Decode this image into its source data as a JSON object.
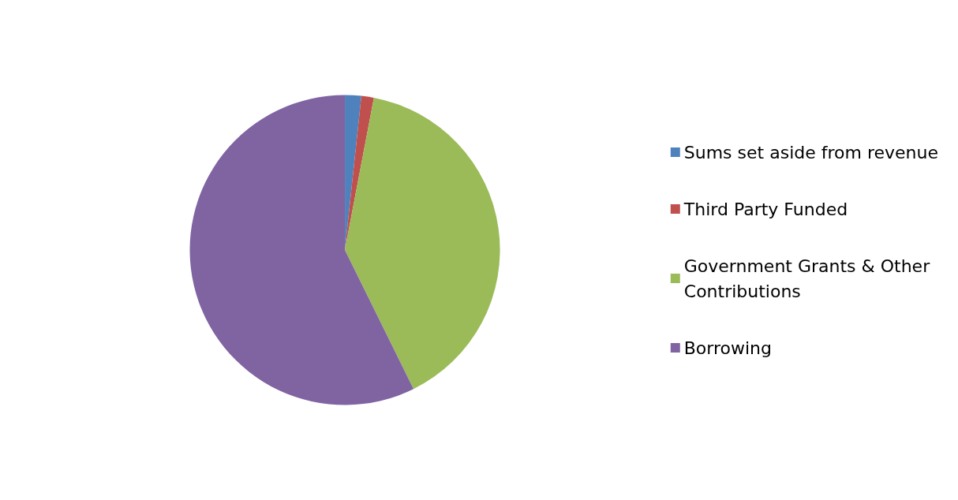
{
  "chart_data": {
    "type": "pie",
    "categories": [
      "Sums set aside from revenue",
      "Third Party Funded",
      "Government Grants & Other Contributions",
      "Borrowing"
    ],
    "values": [
      1.7,
      1.3,
      39.7,
      57.3
    ],
    "colors": [
      "#4f81bd",
      "#c0504d",
      "#9bbb59",
      "#8064a2"
    ],
    "legend": "right"
  }
}
